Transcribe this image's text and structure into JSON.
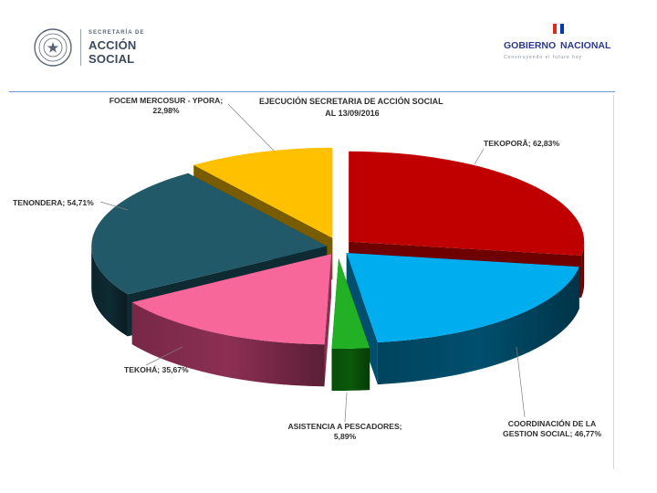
{
  "header": {
    "org_subtitle": "SECRETARÍA DE",
    "org_line1": "ACCIÓN",
    "org_line2": "SOCIAL",
    "brand_name_left": "GOBIERNO",
    "brand_name_right": "NACIONAL",
    "brand_tagline": "Construyendo el futuro hoy"
  },
  "chart_data": {
    "type": "pie",
    "title_lines": [
      "EJECUCIÓN SECRETARIA DE ACCIÓN SOCIAL",
      "AL 13/09/2016"
    ],
    "slices": [
      {
        "label_lines": [
          "TEKOPORÂ; 62,83%"
        ],
        "value": 62.83,
        "color": "#c00000",
        "dark": "#6e0000"
      },
      {
        "label_lines": [
          "COORDINACIÓN DE LA",
          "GESTION SOCIAL; 46,77%"
        ],
        "value": 46.77,
        "color": "#00adef",
        "dark": "#004f6e"
      },
      {
        "label_lines": [
          "ASISTENCIA A PESCADORES;",
          "5,89%"
        ],
        "value": 5.89,
        "color": "#22b024",
        "dark": "#0a5a0b"
      },
      {
        "label_lines": [
          "TEKOHÁ; 35,67%"
        ],
        "value": 35.67,
        "color": "#f7679a",
        "dark": "#8c2f52"
      },
      {
        "label_lines": [
          "TENONDERA; 54,71%"
        ],
        "value": 54.71,
        "color": "#215968",
        "dark": "#0e2a32"
      },
      {
        "label_lines": [
          "FOCEM MERCOSUR - YPORA;",
          "22,98%"
        ],
        "value": 22.98,
        "color": "#ffc000",
        "dark": "#7a5c00"
      }
    ],
    "legend": "none"
  }
}
